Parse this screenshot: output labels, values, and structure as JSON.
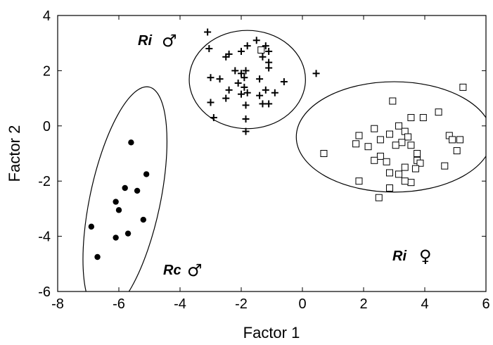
{
  "chart_data": {
    "type": "scatter",
    "xlabel": "Factor 1",
    "ylabel": "Factor 2",
    "xlim": [
      -8,
      6
    ],
    "ylim": [
      -6,
      4
    ],
    "xticks": [
      "-8",
      "-6",
      "-4",
      "-2",
      "0",
      "2",
      "4",
      "6"
    ],
    "yticks": [
      "4",
      "2",
      "0",
      "-2",
      "-4",
      "-6"
    ],
    "grid": false,
    "series": [
      {
        "label": "Rc",
        "sex_symbol": "♂",
        "marker": "filled-circle",
        "points": [
          [
            -5.6,
            -0.6
          ],
          [
            -5.1,
            -1.75
          ],
          [
            -5.8,
            -2.25
          ],
          [
            -5.4,
            -2.35
          ],
          [
            -6.1,
            -2.75
          ],
          [
            -6.0,
            -3.05
          ],
          [
            -5.2,
            -3.4
          ],
          [
            -6.9,
            -3.65
          ],
          [
            -5.7,
            -3.9
          ],
          [
            -6.1,
            -4.05
          ],
          [
            -6.7,
            -4.75
          ]
        ],
        "ellipse": {
          "cx": -5.8,
          "cy": -2.7,
          "rx": 1.15,
          "ry": 4.2,
          "angle_deg": 12
        }
      },
      {
        "label": "Ri",
        "sex_symbol": "♂",
        "marker": "plus",
        "points": [
          [
            -3.1,
            3.4
          ],
          [
            -3.05,
            2.8
          ],
          [
            -1.5,
            3.1
          ],
          [
            -1.2,
            2.9
          ],
          [
            -1.8,
            2.9
          ],
          [
            -2.0,
            2.7
          ],
          [
            -2.4,
            2.6
          ],
          [
            -1.1,
            2.7
          ],
          [
            -2.5,
            2.5
          ],
          [
            -1.3,
            2.5
          ],
          [
            -1.1,
            2.3
          ],
          [
            -1.1,
            2.1
          ],
          [
            -2.2,
            2.0
          ],
          [
            -1.85,
            2.0
          ],
          [
            -3.0,
            1.75
          ],
          [
            -2.7,
            1.7
          ],
          [
            -2.0,
            1.9
          ],
          [
            -1.9,
            1.75
          ],
          [
            -1.4,
            1.7
          ],
          [
            -0.6,
            1.6
          ],
          [
            -2.1,
            1.55
          ],
          [
            -1.9,
            1.4
          ],
          [
            -2.4,
            1.3
          ],
          [
            -1.2,
            1.3
          ],
          [
            -0.9,
            1.2
          ],
          [
            -2.0,
            1.15
          ],
          [
            -1.4,
            1.1
          ],
          [
            -2.5,
            1.0
          ],
          [
            -3.0,
            0.85
          ],
          [
            -1.8,
            1.2
          ],
          [
            -1.3,
            0.8
          ],
          [
            -1.1,
            0.8
          ],
          [
            -1.85,
            0.75
          ],
          [
            -2.9,
            0.3
          ],
          [
            -1.85,
            0.25
          ],
          [
            -1.85,
            -0.2
          ],
          [
            0.45,
            1.9
          ]
        ],
        "ellipse": {
          "cx": -1.8,
          "cy": 1.68,
          "rx": 1.9,
          "ry": 1.78,
          "angle_deg": 0
        }
      },
      {
        "label": "Ri",
        "sex_symbol": "♀",
        "marker": "open-square",
        "points": [
          [
            -1.35,
            2.75
          ],
          [
            5.25,
            1.4
          ],
          [
            2.95,
            0.9
          ],
          [
            4.45,
            0.5
          ],
          [
            3.95,
            0.3
          ],
          [
            3.55,
            0.3
          ],
          [
            3.15,
            0.0
          ],
          [
            2.35,
            -0.1
          ],
          [
            3.35,
            -0.2
          ],
          [
            2.85,
            -0.3
          ],
          [
            1.85,
            -0.35
          ],
          [
            4.8,
            -0.35
          ],
          [
            3.45,
            -0.4
          ],
          [
            2.55,
            -0.5
          ],
          [
            4.9,
            -0.5
          ],
          [
            5.15,
            -0.5
          ],
          [
            3.25,
            -0.6
          ],
          [
            1.75,
            -0.65
          ],
          [
            3.55,
            -0.7
          ],
          [
            3.05,
            -0.7
          ],
          [
            2.15,
            -0.75
          ],
          [
            0.7,
            -1.0
          ],
          [
            5.05,
            -0.9
          ],
          [
            3.75,
            -1.0
          ],
          [
            2.55,
            -1.1
          ],
          [
            3.75,
            -1.25
          ],
          [
            2.35,
            -1.25
          ],
          [
            2.75,
            -1.3
          ],
          [
            3.85,
            -1.35
          ],
          [
            3.35,
            -1.5
          ],
          [
            4.65,
            -1.45
          ],
          [
            3.7,
            -1.55
          ],
          [
            2.85,
            -1.7
          ],
          [
            3.15,
            -1.75
          ],
          [
            1.85,
            -2.0
          ],
          [
            3.55,
            -2.05
          ],
          [
            3.35,
            -2.0
          ],
          [
            2.85,
            -2.25
          ],
          [
            2.5,
            -2.6
          ]
        ],
        "ellipse": {
          "cx": 3.0,
          "cy": -0.4,
          "rx": 3.2,
          "ry": 2.0,
          "angle_deg": 0
        }
      }
    ]
  },
  "labels": {
    "ri_male_text": "Ri",
    "ri_male_symbol": "♂",
    "ri_female_text": "Ri",
    "ri_female_symbol": "♀",
    "rc_male_text": "Rc",
    "rc_male_symbol": "♂"
  }
}
